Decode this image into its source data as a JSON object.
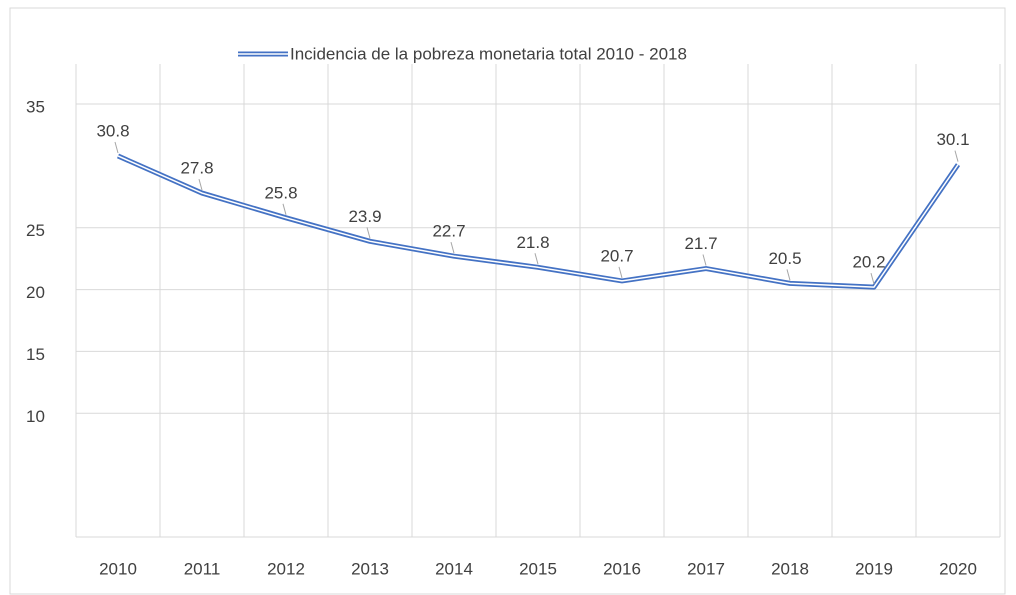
{
  "chart_data": {
    "type": "line",
    "title": "Incidencia de la pobreza monetaria total 2010 - 2018",
    "categories": [
      "2010",
      "2011",
      "2012",
      "2013",
      "2014",
      "2015",
      "2016",
      "2017",
      "2018",
      "2019",
      "2020"
    ],
    "series": [
      {
        "name": "Incidencia de la pobreza monetaria total 2010 - 2018",
        "color": "#4472c4",
        "values": [
          30.8,
          27.8,
          25.8,
          23.9,
          22.7,
          21.8,
          20.7,
          21.7,
          20.5,
          20.2,
          30.1
        ]
      }
    ],
    "ylim": [
      0,
      35
    ],
    "yticks": [
      35,
      25,
      20,
      15,
      10
    ],
    "grid": true
  }
}
